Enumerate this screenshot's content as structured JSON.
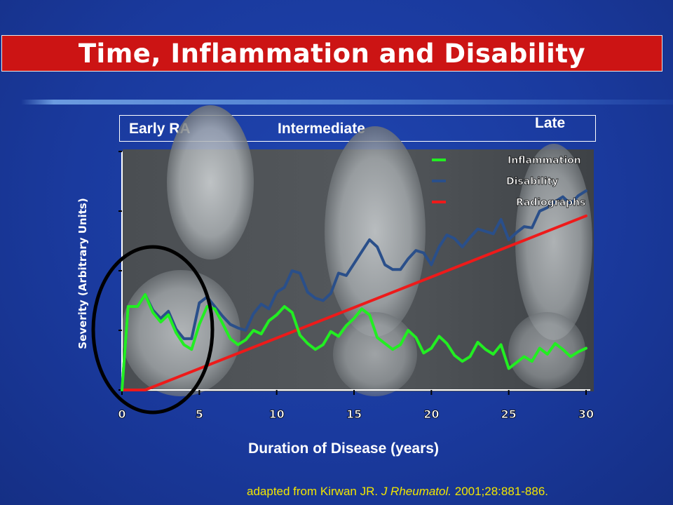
{
  "title": "Time, Inflammation and Disability",
  "stages": {
    "early": "Early RA",
    "intermediate": "Intermediate",
    "late": "Late"
  },
  "source": {
    "prefix": "adapted from Kirwan JR.",
    "journal": "J Rheumatol.",
    "suffix": "2001;28:881-886."
  },
  "chart_data": {
    "type": "line",
    "title": "Time, Inflammation and Disability",
    "xlabel": "Duration of Disease (years)",
    "ylabel": "Severity (Arbitrary Units)",
    "xlim": [
      0,
      30
    ],
    "ylim": [
      0,
      20
    ],
    "xticks": [
      "0",
      "5",
      "10",
      "15",
      "20",
      "25",
      "30"
    ],
    "grid": false,
    "legend_position": "top-right",
    "series": [
      {
        "name": "Inflammation",
        "color": "#22ee22",
        "x": [
          0,
          0.4,
          1,
          1.5,
          2,
          2.5,
          3,
          3.5,
          4,
          4.5,
          5,
          5.5,
          6,
          6.5,
          7,
          7.5,
          8,
          8.5,
          9,
          9.5,
          10,
          10.5,
          11,
          11.5,
          12,
          12.5,
          13,
          13.5,
          14,
          14.5,
          15,
          15.5,
          16,
          16.5,
          17,
          17.5,
          18,
          18.5,
          19,
          19.5,
          20,
          20.5,
          21,
          21.5,
          22,
          22.5,
          23,
          23.5,
          24,
          24.5,
          25,
          25.5,
          26,
          26.5,
          27,
          27.5,
          28,
          28.5,
          29,
          29.5,
          30
        ],
        "y": [
          0,
          7,
          7,
          8,
          6.5,
          5.7,
          6.3,
          4.8,
          3.8,
          3.4,
          5.5,
          7,
          6.8,
          5.6,
          4.3,
          3.8,
          4.2,
          5,
          4.7,
          5.8,
          6.3,
          7,
          6.5,
          4.6,
          3.9,
          3.4,
          3.8,
          4.9,
          4.5,
          5.4,
          6,
          6.8,
          6.3,
          4.4,
          3.9,
          3.4,
          3.8,
          5,
          4.4,
          3.1,
          3.5,
          4.5,
          3.9,
          2.9,
          2.4,
          2.8,
          4,
          3.4,
          3,
          3.8,
          1.8,
          2.3,
          2.8,
          2.4,
          3.5,
          3,
          3.9,
          3.4,
          2.8,
          3.2,
          3.5
        ]
      },
      {
        "name": "Disability",
        "color": "#2a4f8a",
        "x": [
          0,
          0.4,
          1,
          1.5,
          2,
          2.5,
          3,
          3.5,
          4,
          4.5,
          5,
          5.5,
          6,
          6.5,
          7,
          7.5,
          8,
          8.5,
          9,
          9.5,
          10,
          10.5,
          11,
          11.5,
          12,
          12.5,
          13,
          13.5,
          14,
          14.5,
          15,
          15.5,
          16,
          16.5,
          17,
          17.5,
          18,
          18.5,
          19,
          19.5,
          20,
          20.5,
          21,
          21.5,
          22,
          22.5,
          23,
          23.5,
          24,
          24.5,
          25,
          25.5,
          26,
          26.5,
          27,
          27.5,
          28,
          28.5,
          29,
          29.5,
          30
        ],
        "y": [
          0,
          7,
          7,
          8,
          6.7,
          6,
          6.6,
          5.1,
          4.3,
          4.3,
          7.3,
          7.8,
          7,
          6.2,
          5.5,
          5.2,
          5,
          6.4,
          7.2,
          6.8,
          8.2,
          8.6,
          10,
          9.8,
          8.2,
          7.7,
          7.5,
          8.1,
          9.8,
          9.6,
          10.6,
          11.6,
          12.6,
          12,
          10.5,
          10.1,
          10.1,
          11,
          11.7,
          11.5,
          10.5,
          12,
          13,
          12.7,
          12,
          12.8,
          13.5,
          13.3,
          13.1,
          14.3,
          12.6,
          13.2,
          13.7,
          13.6,
          15,
          15.3,
          15.8,
          16.2,
          15.6,
          16.3,
          16.7
        ]
      },
      {
        "name": "Radiographs",
        "color": "#ee1a1a",
        "x": [
          0,
          1.5,
          30
        ],
        "y": [
          0,
          0,
          14.6
        ]
      }
    ]
  }
}
